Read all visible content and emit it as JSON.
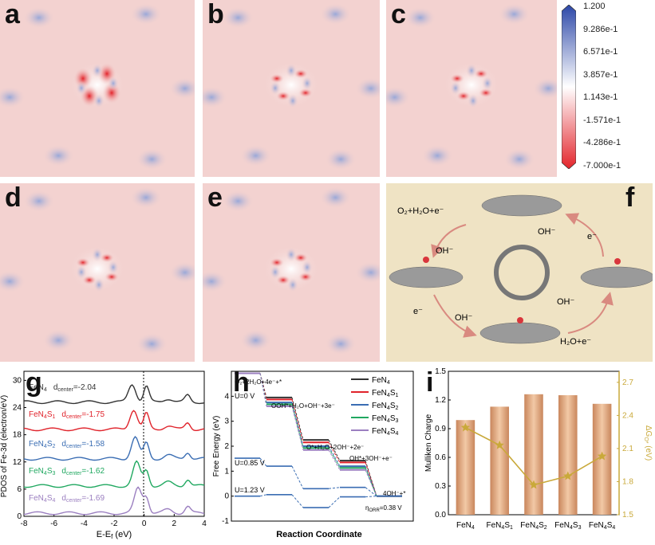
{
  "panels": {
    "a": "a",
    "b": "b",
    "c": "c",
    "d": "d",
    "e": "e",
    "f": "f",
    "g": "g",
    "h": "h",
    "i": "i"
  },
  "colorbar": {
    "ticks": [
      "1.200",
      "9.286e-1",
      "6.571e-1",
      "3.857e-1",
      "1.143e-1",
      "-1.571e-1",
      "-4.286e-1",
      "-7.000e-1"
    ],
    "colors": {
      "top": "#2c47a8",
      "mid": "#ffffff",
      "bottom": "#e3242b"
    }
  },
  "mechanism": {
    "labels": {
      "reactant_tl": "O₂+H₂O+e⁻",
      "oh_left": "OH⁻",
      "oh_right_top": "OH⁻",
      "e_right_top": "e⁻",
      "e_left_bottom": "e⁻",
      "oh_bottom": "OH⁻",
      "oh_right_mid": "OH⁻",
      "reactant_br": "H₂O+e⁻"
    }
  },
  "pdos": {
    "ylabel": "PDOS of Fe-3d (electron/eV)",
    "xlabel": "E-E",
    "xlabel_sub": "f",
    "xlabel_unit": " (eV)",
    "dcenter": "d",
    "dcenter_sub": "center",
    "chart_data": {
      "type": "line",
      "xlim": [
        -8,
        4
      ],
      "ylim": [
        0,
        32
      ],
      "xticks": [
        -8,
        -6,
        -4,
        -2,
        0,
        2,
        4
      ],
      "yticks": [
        0,
        6,
        12,
        18,
        24,
        30
      ],
      "series": [
        {
          "name": "FeN4",
          "d_center": "=-2.04",
          "offset": 25,
          "color": "#333333"
        },
        {
          "name": "FeN4S1",
          "d_center": "=-1.75",
          "offset": 19,
          "color": "#e0232b"
        },
        {
          "name": "FeN4S2",
          "d_center": "=-1.58",
          "offset": 12.5,
          "color": "#3a6db3"
        },
        {
          "name": "FeN4S3",
          "d_center": "=-1.62",
          "offset": 6.5,
          "color": "#20a860"
        },
        {
          "name": "FeN4S4",
          "d_center": "=-1.69",
          "offset": 0.5,
          "color": "#9b7fc0"
        }
      ]
    }
  },
  "energy": {
    "ylabel": "Free Energy (eV)",
    "xlabel": "Reaction Coordinate",
    "annotations": {
      "s0": "O₂+2H₂O+4e⁻+*",
      "s1": "OOH*+H₂O+OH⁻+3e⁻",
      "s2": "O*+H₂O+2OH⁻+2e⁻",
      "s3": "OH*+3OH⁻+e⁻",
      "s4": "4OH⁻+*",
      "u0": "U=0 V",
      "u1": "U=0.85 V",
      "u2": "U=1.23 V",
      "eta": "η",
      "eta_sub": "ORR",
      "eta_val": "=0.38 V"
    },
    "chart_data": {
      "type": "line",
      "ylim": [
        -1,
        5
      ],
      "yticks": [
        -1,
        0,
        1,
        2,
        3,
        4
      ],
      "series": [
        {
          "name": "FeN4",
          "color": "#333333",
          "levels": [
            4.92,
            3.95,
            2.25,
            1.42,
            0
          ]
        },
        {
          "name": "FeN4S1",
          "color": "#e0232b",
          "levels": [
            4.92,
            3.87,
            2.15,
            1.35,
            0
          ]
        },
        {
          "name": "FeN4S2",
          "color": "#3a6db3",
          "levels": [
            4.92,
            3.75,
            2.0,
            1.2,
            0
          ]
        },
        {
          "name": "FeN4S3",
          "color": "#20a860",
          "levels": [
            4.92,
            3.68,
            1.93,
            1.13,
            0
          ]
        },
        {
          "name": "FeN4S4",
          "color": "#9b7fc0",
          "levels": [
            4.92,
            3.6,
            1.85,
            1.05,
            0
          ]
        }
      ]
    }
  },
  "mulliken": {
    "ylabel": "Mulliken Charge",
    "y2label": "ΔG",
    "y2label_sub": "O*",
    "y2label_unit": " (eV)",
    "chart_data": {
      "type": "bar",
      "categories": [
        "FeN4",
        "FeN4S1",
        "FeN4S2",
        "FeN4S3",
        "FeN4S4"
      ],
      "values": [
        0.99,
        1.13,
        1.26,
        1.25,
        1.16
      ],
      "ylim": [
        0,
        1.5
      ],
      "yticks": [
        0.0,
        0.3,
        0.6,
        0.9,
        1.2,
        1.5
      ],
      "y2": {
        "values": [
          2.29,
          2.13,
          1.77,
          1.85,
          2.03
        ],
        "ylim": [
          1.5,
          2.8
        ],
        "yticks": [
          1.5,
          1.8,
          2.1,
          2.4,
          2.7
        ],
        "color": "#c9a93a"
      }
    }
  },
  "legend_labels": [
    {
      "main": "FeN",
      "sub1": "4",
      "rest": ""
    },
    {
      "main": "FeN",
      "sub1": "4",
      "rest": "S",
      "sub2": "1"
    },
    {
      "main": "FeN",
      "sub1": "4",
      "rest": "S",
      "sub2": "2"
    },
    {
      "main": "FeN",
      "sub1": "4",
      "rest": "S",
      "sub2": "3"
    },
    {
      "main": "FeN",
      "sub1": "4",
      "rest": "S",
      "sub2": "4"
    }
  ]
}
